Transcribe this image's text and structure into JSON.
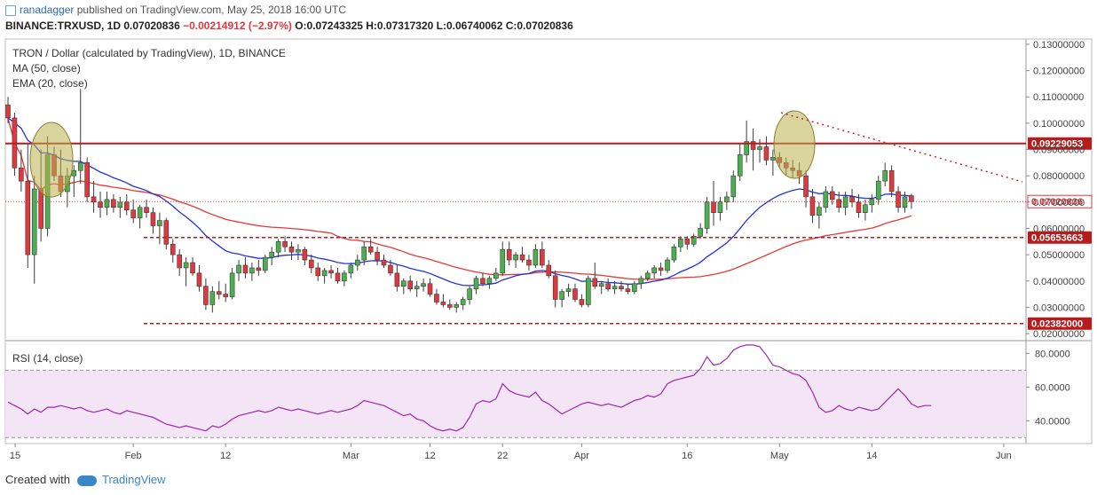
{
  "header": {
    "author": "ranadagger",
    "published": "published on TradingView.com, May 25, 2018 16:00 UTC",
    "symbol_line": "BINANCE:TRXUSD, 1D  0.07020836",
    "change": "−0.00214912 (−2.97%)",
    "ohlc": "O:0.07243325 H:0.07317320 L:0.06740062 C:0.07020836"
  },
  "legend": {
    "title": "TRON / Dollar (calculated by TradingView), 1D, BINANCE",
    "ma": "MA (50, close)",
    "ema": "EMA (20, close)",
    "rsi": "RSI (14, close)"
  },
  "footer": {
    "created_with": "Created with",
    "brand": "TradingView"
  },
  "colors": {
    "up": "#4caf50",
    "down": "#e0383f",
    "ma": "#e53935",
    "ema": "#2233dd",
    "rsi": "#9c27b0",
    "level": "#b71c1c",
    "rsi_band": "#f3e5f5"
  },
  "chart_data": [
    {
      "type": "candlestick",
      "title": "TRON / Dollar (calculated by TradingView), 1D, BINANCE",
      "x_ticks": [
        "15",
        "Feb",
        "12",
        "Mar",
        "12",
        "22",
        "Apr",
        "16",
        "May",
        "14",
        "Jun"
      ],
      "y_ticks": [
        "0.13000000",
        "0.12000000",
        "0.11000000",
        "0.10000000",
        "0.09000000",
        "0.08000000",
        "0.07000000",
        "0.06000000",
        "0.05000000",
        "0.04000000",
        "0.03000000",
        "0.02000000"
      ],
      "ylim": [
        0.018,
        0.132
      ],
      "levels": [
        {
          "value": 0.09229053,
          "label": "0.09229053",
          "style": "solid"
        },
        {
          "value": 0.05653663,
          "label": "0.05653663",
          "style": "dashed"
        },
        {
          "value": 0.02382,
          "label": "0.02382000",
          "style": "dashed"
        }
      ],
      "last_price": {
        "value": 0.07020836,
        "label": "0.07020836"
      },
      "candles": [
        [
          0.107,
          0.11,
          0.1,
          0.102
        ],
        [
          0.102,
          0.104,
          0.08,
          0.083
        ],
        [
          0.083,
          0.09,
          0.074,
          0.078
        ],
        [
          0.078,
          0.092,
          0.045,
          0.05
        ],
        [
          0.05,
          0.08,
          0.039,
          0.075
        ],
        [
          0.075,
          0.09,
          0.055,
          0.06
        ],
        [
          0.06,
          0.095,
          0.057,
          0.088
        ],
        [
          0.088,
          0.091,
          0.078,
          0.08
        ],
        [
          0.08,
          0.09,
          0.072,
          0.074
        ],
        [
          0.074,
          0.083,
          0.068,
          0.08
        ],
        [
          0.08,
          0.084,
          0.072,
          0.082
        ],
        [
          0.082,
          0.113,
          0.077,
          0.085
        ],
        [
          0.085,
          0.087,
          0.07,
          0.072
        ],
        [
          0.072,
          0.078,
          0.066,
          0.07
        ],
        [
          0.07,
          0.074,
          0.064,
          0.068
        ],
        [
          0.068,
          0.074,
          0.065,
          0.071
        ],
        [
          0.071,
          0.073,
          0.066,
          0.068
        ],
        [
          0.068,
          0.072,
          0.064,
          0.07
        ],
        [
          0.07,
          0.073,
          0.065,
          0.067
        ],
        [
          0.067,
          0.071,
          0.062,
          0.064
        ],
        [
          0.064,
          0.069,
          0.06,
          0.068
        ],
        [
          0.068,
          0.071,
          0.064,
          0.066
        ],
        [
          0.066,
          0.068,
          0.058,
          0.061
        ],
        [
          0.061,
          0.066,
          0.054,
          0.063
        ],
        [
          0.063,
          0.064,
          0.052,
          0.054
        ],
        [
          0.054,
          0.056,
          0.047,
          0.05
        ],
        [
          0.05,
          0.052,
          0.042,
          0.045
        ],
        [
          0.045,
          0.049,
          0.038,
          0.047
        ],
        [
          0.047,
          0.049,
          0.042,
          0.043
        ],
        [
          0.043,
          0.046,
          0.036,
          0.038
        ],
        [
          0.038,
          0.041,
          0.029,
          0.031
        ],
        [
          0.031,
          0.038,
          0.028,
          0.036
        ],
        [
          0.036,
          0.04,
          0.033,
          0.035
        ],
        [
          0.035,
          0.039,
          0.032,
          0.034
        ],
        [
          0.034,
          0.045,
          0.033,
          0.043
        ],
        [
          0.043,
          0.048,
          0.04,
          0.046
        ],
        [
          0.046,
          0.049,
          0.041,
          0.043
        ],
        [
          0.043,
          0.047,
          0.04,
          0.045
        ],
        [
          0.045,
          0.048,
          0.042,
          0.044
        ],
        [
          0.044,
          0.05,
          0.043,
          0.049
        ],
        [
          0.049,
          0.053,
          0.046,
          0.051
        ],
        [
          0.051,
          0.056,
          0.049,
          0.055
        ],
        [
          0.055,
          0.057,
          0.051,
          0.053
        ],
        [
          0.053,
          0.055,
          0.048,
          0.051
        ],
        [
          0.051,
          0.054,
          0.048,
          0.052
        ],
        [
          0.052,
          0.053,
          0.046,
          0.048
        ],
        [
          0.048,
          0.05,
          0.043,
          0.045
        ],
        [
          0.045,
          0.047,
          0.04,
          0.042
        ],
        [
          0.042,
          0.045,
          0.039,
          0.044
        ],
        [
          0.044,
          0.046,
          0.041,
          0.043
        ],
        [
          0.043,
          0.045,
          0.039,
          0.04
        ],
        [
          0.04,
          0.044,
          0.038,
          0.043
        ],
        [
          0.043,
          0.047,
          0.041,
          0.046
        ],
        [
          0.046,
          0.05,
          0.044,
          0.048
        ],
        [
          0.048,
          0.055,
          0.046,
          0.053
        ],
        [
          0.053,
          0.056,
          0.05,
          0.051
        ],
        [
          0.051,
          0.053,
          0.046,
          0.048
        ],
        [
          0.048,
          0.05,
          0.045,
          0.046
        ],
        [
          0.046,
          0.048,
          0.042,
          0.043
        ],
        [
          0.043,
          0.046,
          0.036,
          0.038
        ],
        [
          0.038,
          0.041,
          0.035,
          0.04
        ],
        [
          0.04,
          0.042,
          0.036,
          0.037
        ],
        [
          0.037,
          0.04,
          0.034,
          0.038
        ],
        [
          0.038,
          0.041,
          0.036,
          0.039
        ],
        [
          0.039,
          0.041,
          0.034,
          0.035
        ],
        [
          0.035,
          0.037,
          0.031,
          0.032
        ],
        [
          0.032,
          0.035,
          0.03,
          0.031
        ],
        [
          0.031,
          0.033,
          0.029,
          0.03
        ],
        [
          0.03,
          0.032,
          0.028,
          0.031
        ],
        [
          0.031,
          0.034,
          0.029,
          0.033
        ],
        [
          0.033,
          0.038,
          0.031,
          0.037
        ],
        [
          0.037,
          0.042,
          0.035,
          0.041
        ],
        [
          0.041,
          0.043,
          0.038,
          0.039
        ],
        [
          0.039,
          0.042,
          0.037,
          0.041
        ],
        [
          0.041,
          0.045,
          0.04,
          0.043
        ],
        [
          0.043,
          0.055,
          0.042,
          0.052
        ],
        [
          0.052,
          0.055,
          0.046,
          0.048
        ],
        [
          0.048,
          0.051,
          0.045,
          0.05
        ],
        [
          0.05,
          0.053,
          0.047,
          0.048
        ],
        [
          0.048,
          0.05,
          0.044,
          0.046
        ],
        [
          0.046,
          0.054,
          0.045,
          0.052
        ],
        [
          0.052,
          0.055,
          0.045,
          0.046
        ],
        [
          0.046,
          0.048,
          0.041,
          0.042
        ],
        [
          0.042,
          0.044,
          0.03,
          0.033
        ],
        [
          0.033,
          0.037,
          0.03,
          0.036
        ],
        [
          0.036,
          0.039,
          0.034,
          0.037
        ],
        [
          0.037,
          0.039,
          0.032,
          0.033
        ],
        [
          0.033,
          0.035,
          0.03,
          0.031
        ],
        [
          0.031,
          0.042,
          0.03,
          0.041
        ],
        [
          0.041,
          0.047,
          0.037,
          0.038
        ],
        [
          0.038,
          0.04,
          0.035,
          0.039
        ],
        [
          0.039,
          0.041,
          0.036,
          0.037
        ],
        [
          0.037,
          0.04,
          0.035,
          0.038
        ],
        [
          0.038,
          0.04,
          0.036,
          0.037
        ],
        [
          0.037,
          0.039,
          0.035,
          0.036
        ],
        [
          0.036,
          0.04,
          0.035,
          0.039
        ],
        [
          0.039,
          0.042,
          0.037,
          0.041
        ],
        [
          0.041,
          0.044,
          0.04,
          0.043
        ],
        [
          0.043,
          0.046,
          0.041,
          0.045
        ],
        [
          0.045,
          0.047,
          0.042,
          0.044
        ],
        [
          0.044,
          0.049,
          0.043,
          0.048
        ],
        [
          0.048,
          0.054,
          0.047,
          0.053
        ],
        [
          0.053,
          0.057,
          0.051,
          0.056
        ],
        [
          0.056,
          0.057,
          0.052,
          0.054
        ],
        [
          0.054,
          0.058,
          0.053,
          0.057
        ],
        [
          0.057,
          0.062,
          0.056,
          0.06
        ],
        [
          0.06,
          0.072,
          0.058,
          0.07
        ],
        [
          0.07,
          0.078,
          0.061,
          0.066
        ],
        [
          0.066,
          0.072,
          0.063,
          0.07
        ],
        [
          0.07,
          0.074,
          0.067,
          0.072
        ],
        [
          0.072,
          0.082,
          0.07,
          0.08
        ],
        [
          0.08,
          0.092,
          0.078,
          0.088
        ],
        [
          0.088,
          0.101,
          0.085,
          0.093
        ],
        [
          0.093,
          0.098,
          0.082,
          0.09
        ],
        [
          0.09,
          0.094,
          0.085,
          0.091
        ],
        [
          0.091,
          0.095,
          0.084,
          0.086
        ],
        [
          0.086,
          0.09,
          0.08,
          0.087
        ],
        [
          0.087,
          0.089,
          0.083,
          0.085
        ],
        [
          0.085,
          0.087,
          0.08,
          0.083
        ],
        [
          0.083,
          0.086,
          0.079,
          0.082
        ],
        [
          0.082,
          0.085,
          0.077,
          0.08
        ],
        [
          0.08,
          0.082,
          0.068,
          0.072
        ],
        [
          0.072,
          0.075,
          0.062,
          0.065
        ],
        [
          0.065,
          0.07,
          0.06,
          0.068
        ],
        [
          0.068,
          0.076,
          0.066,
          0.074
        ],
        [
          0.074,
          0.076,
          0.069,
          0.071
        ],
        [
          0.071,
          0.074,
          0.066,
          0.068
        ],
        [
          0.068,
          0.074,
          0.065,
          0.072
        ],
        [
          0.072,
          0.075,
          0.068,
          0.07
        ],
        [
          0.07,
          0.073,
          0.064,
          0.066
        ],
        [
          0.066,
          0.071,
          0.063,
          0.069
        ],
        [
          0.069,
          0.073,
          0.066,
          0.071
        ],
        [
          0.071,
          0.08,
          0.069,
          0.078
        ],
        [
          0.078,
          0.085,
          0.076,
          0.082
        ],
        [
          0.082,
          0.084,
          0.072,
          0.074
        ],
        [
          0.074,
          0.076,
          0.066,
          0.068
        ],
        [
          0.068,
          0.074,
          0.066,
          0.072
        ],
        [
          0.07243325,
          0.0731732,
          0.06740062,
          0.07020836
        ]
      ]
    },
    {
      "type": "line",
      "title": "RSI (14, close)",
      "y_ticks": [
        "80.0000",
        "60.0000",
        "40.0000"
      ],
      "ylim": [
        27,
        86
      ],
      "band": [
        30,
        70
      ],
      "series": [
        {
          "values": [
            51,
            49,
            47,
            44,
            47,
            45,
            48,
            48,
            49,
            48,
            47,
            48,
            46,
            45,
            46,
            47,
            45,
            44,
            46,
            45,
            44,
            43,
            42,
            40,
            38,
            37,
            36,
            37,
            36,
            35,
            34,
            37,
            36,
            38,
            41,
            43,
            44,
            45,
            46,
            45,
            46,
            48,
            47,
            46,
            47,
            46,
            45,
            44,
            45,
            46,
            45,
            46,
            47,
            49,
            52,
            51,
            50,
            49,
            47,
            45,
            43,
            44,
            41,
            40,
            37,
            35,
            34,
            35,
            34,
            36,
            42,
            50,
            52,
            51,
            53,
            62,
            58,
            56,
            55,
            54,
            57,
            52,
            50,
            47,
            44,
            46,
            48,
            50,
            51,
            50,
            49,
            50,
            49,
            48,
            50,
            52,
            53,
            55,
            54,
            56,
            62,
            64,
            65,
            66,
            67,
            71,
            78,
            73,
            74,
            77,
            82,
            84,
            85,
            85,
            84,
            79,
            73,
            72,
            70,
            68,
            67,
            64,
            57,
            48,
            45,
            46,
            49,
            47,
            46,
            48,
            47,
            46,
            47,
            51,
            55,
            59,
            55,
            50,
            48,
            49,
            49
          ]
        }
      ]
    }
  ]
}
